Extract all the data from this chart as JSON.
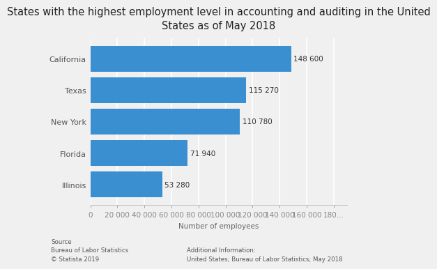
{
  "title": "States with the highest employment level in accounting and auditing in the United\nStates as of May 2018",
  "states": [
    "Illinois",
    "Florida",
    "New York",
    "Texas",
    "California"
  ],
  "values": [
    53280,
    71940,
    110780,
    115270,
    148600
  ],
  "labels": [
    "53 280",
    "71 940",
    "110 780",
    "115 270",
    "148 600"
  ],
  "bar_color": "#3a8fd1",
  "background_color": "#f0f0f0",
  "plot_background_color": "#f0f0f0",
  "xlabel": "Number of employees",
  "xlim": [
    0,
    190000
  ],
  "xtick_values": [
    0,
    20000,
    40000,
    60000,
    80000,
    100000,
    120000,
    140000,
    160000,
    180000
  ],
  "xtick_labels": [
    "0",
    "20 000",
    "40 000",
    "60 000",
    "80 000",
    "100 000",
    "120 000",
    "140 000",
    "160 000",
    "180…"
  ],
  "title_fontsize": 10.5,
  "label_fontsize": 7.5,
  "tick_fontsize": 7.5,
  "ytick_fontsize": 8,
  "source_text": "Source\nBureau of Labor Statistics\n© Statista 2019",
  "additional_text": "Additional Information:\nUnited States; Bureau of Labor Statistics; May 2018"
}
